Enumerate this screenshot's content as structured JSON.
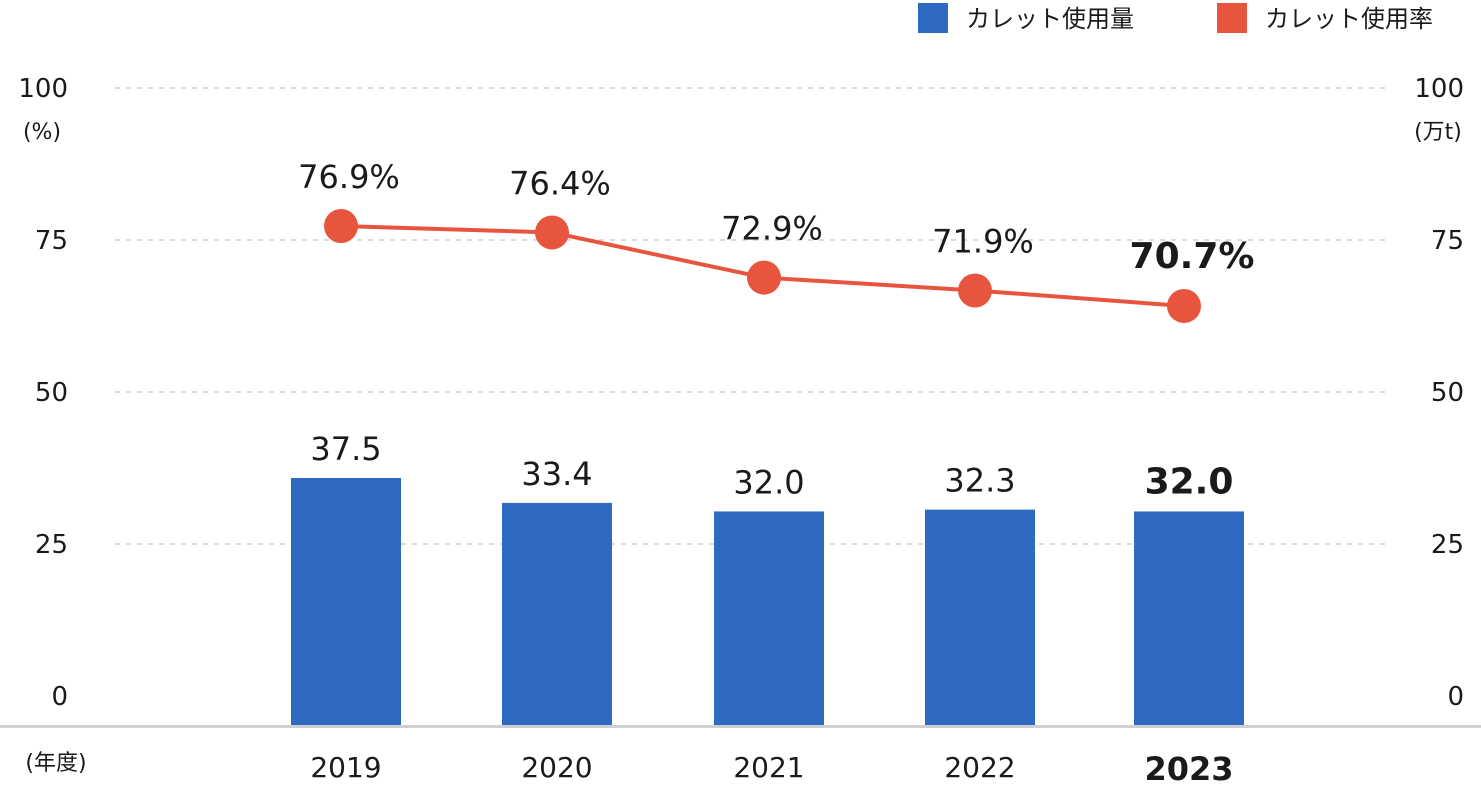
{
  "chart_data": {
    "type": "bar+line",
    "categories": [
      "2019",
      "2020",
      "2021",
      "2022",
      "2023"
    ],
    "highlight_category": "2023",
    "series": [
      {
        "name": "カレット使用量",
        "type": "bar",
        "axis": "right",
        "color": "#2e6bc0",
        "values": [
          37.5,
          33.4,
          32.0,
          32.3,
          32.0
        ],
        "labels": [
          "37.5",
          "33.4",
          "32.0",
          "32.3",
          "32.0"
        ]
      },
      {
        "name": "カレット使用率",
        "type": "line",
        "axis": "left",
        "color": "#e8553e",
        "values": [
          76.9,
          76.4,
          72.9,
          71.9,
          70.7
        ],
        "labels": [
          "76.9%",
          "76.4%",
          "72.9%",
          "71.9%",
          "70.7%"
        ]
      }
    ],
    "left_axis": {
      "unit": "(%)",
      "ticks": [
        "0",
        "25",
        "50",
        "75",
        "100"
      ],
      "ylim": [
        0,
        100
      ]
    },
    "right_axis": {
      "unit": "(万t)",
      "ticks": [
        "0",
        "25",
        "50",
        "75",
        "100"
      ],
      "ylim": [
        0,
        100
      ]
    },
    "x_axis_unit": "(年度)",
    "grid": "dashed horizontal",
    "legend_position": "top-right"
  }
}
